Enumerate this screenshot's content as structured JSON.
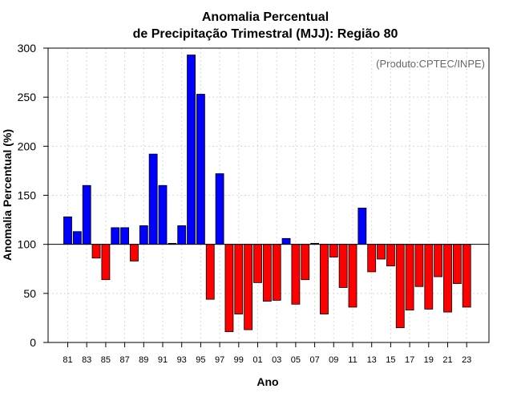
{
  "chart_data": {
    "type": "bar",
    "title_line1": "Anomalia Percentual",
    "title_line2": "de Precipitação Trimestral (MJJ): Região 80",
    "xlabel": "Ano",
    "ylabel": "Anomalia Percentual (%)",
    "credit": "(Produto:CPTEC/INPE)",
    "baseline": 100,
    "ylim": [
      0,
      300
    ],
    "yticks": [
      0,
      50,
      100,
      150,
      200,
      250,
      300
    ],
    "categories": [
      "81",
      "82",
      "83",
      "84",
      "85",
      "86",
      "87",
      "88",
      "89",
      "90",
      "91",
      "92",
      "93",
      "94",
      "95",
      "96",
      "97",
      "98",
      "99",
      "00",
      "01",
      "02",
      "03",
      "04",
      "05",
      "06",
      "07",
      "08",
      "09",
      "10",
      "11",
      "12",
      "13",
      "14",
      "15",
      "16",
      "17",
      "18",
      "19",
      "20",
      "21",
      "22",
      "23"
    ],
    "xtick_labels": [
      "81",
      "83",
      "85",
      "87",
      "89",
      "91",
      "93",
      "95",
      "97",
      "99",
      "01",
      "03",
      "05",
      "07",
      "09",
      "11",
      "13",
      "15",
      "17",
      "19",
      "21",
      "23"
    ],
    "values": [
      128,
      113,
      160,
      86,
      64,
      117,
      117,
      83,
      119,
      192,
      160,
      101,
      119,
      293,
      253,
      44,
      172,
      11,
      29,
      13,
      61,
      42,
      43,
      106,
      39,
      64,
      101,
      29,
      87,
      56,
      36,
      137,
      72,
      85,
      78,
      15,
      33,
      57,
      34,
      67,
      31,
      60,
      36
    ],
    "colors": {
      "above": "#0000ff",
      "below": "#ff0000",
      "edge": "#000000",
      "grid": "#d8d8d8"
    }
  }
}
